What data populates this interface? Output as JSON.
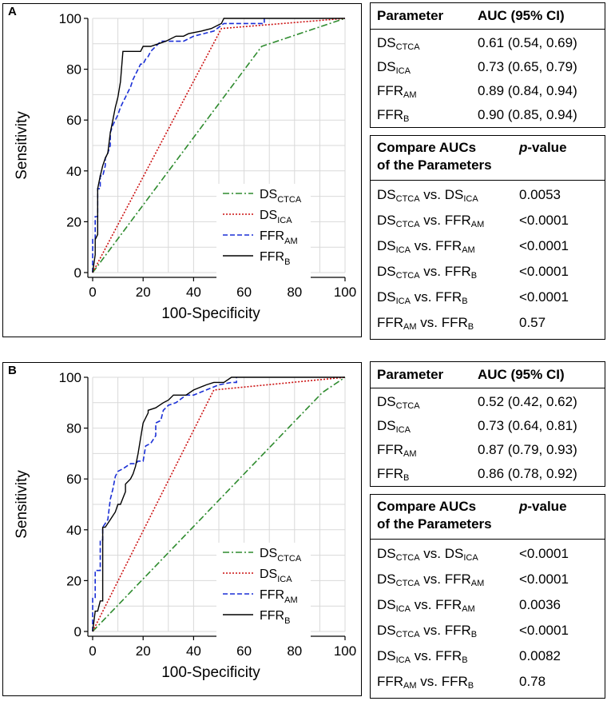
{
  "panels": [
    {
      "letter": "A",
      "chart_data": {
        "type": "line",
        "xlabel": "100-Specificity",
        "ylabel": "Sensitivity",
        "xlim": [
          0,
          100
        ],
        "ylim": [
          0,
          100
        ],
        "xticks": [
          "0",
          "20",
          "40",
          "60",
          "80",
          "100"
        ],
        "yticks": [
          "0",
          "20",
          "40",
          "60",
          "80",
          "100"
        ],
        "grid": true,
        "legend_position": "bottom-right",
        "series": [
          {
            "name": "DS_CTCA",
            "base": "DS",
            "sub": "CTCA",
            "color": "#2e8b2e",
            "dash": "8,3,2,3",
            "x": [
              0,
              67,
              100
            ],
            "y": [
              0,
              89,
              100
            ]
          },
          {
            "name": "DS_ICA",
            "base": "DS",
            "sub": "ICA",
            "color": "#cc1111",
            "dash": "2,2",
            "x": [
              0,
              51,
              100
            ],
            "y": [
              0,
              96,
              100
            ]
          },
          {
            "name": "FFR_AM",
            "base": "FFR",
            "sub": "AM",
            "color": "#1a2fd6",
            "dash": "6,3",
            "x": [
              0,
              0,
              1,
              1,
              2,
              2,
              3,
              3,
              4,
              5,
              5,
              6,
              7,
              7,
              8,
              9,
              10,
              11,
              12,
              13,
              14,
              15,
              16,
              17,
              18,
              19,
              20,
              21,
              22,
              23,
              25,
              27,
              30,
              33,
              36,
              40,
              44,
              48,
              52,
              56,
              60,
              64,
              68,
              68
            ],
            "y": [
              0,
              13,
              13,
              22,
              22,
              33,
              33,
              38,
              38,
              42,
              45,
              47,
              50,
              55,
              58,
              60,
              62,
              65,
              67,
              69,
              71,
              73,
              76,
              78,
              80,
              82,
              82,
              84,
              85,
              87,
              89,
              91,
              91,
              91,
              91,
              93,
              94,
              95,
              98,
              98,
              98,
              98,
              98,
              100
            ]
          },
          {
            "name": "FFR_B",
            "base": "FFR",
            "sub": "B",
            "color": "#000000",
            "dash": "",
            "x": [
              0,
              1,
              1,
              2,
              2,
              3,
              4,
              5,
              6,
              7,
              8,
              9,
              10,
              11,
              12,
              13,
              19,
              20,
              23,
              26,
              29,
              33,
              36,
              38,
              43,
              47,
              51,
              52,
              58,
              70,
              100
            ],
            "y": [
              0,
              7,
              13,
              15,
              33,
              38,
              42,
              45,
              47,
              55,
              60,
              65,
              69,
              75,
              87,
              87,
              87,
              89,
              89,
              90,
              91,
              93,
              93,
              94,
              95,
              96,
              98,
              100,
              100,
              100,
              100
            ]
          }
        ]
      },
      "auc_table": {
        "header": [
          "Parameter",
          "AUC (95% CI)"
        ],
        "rows": [
          {
            "base": "DS",
            "sub": "CTCA",
            "auc": "0.61 (0.54, 0.69)"
          },
          {
            "base": "DS",
            "sub": "ICA",
            "auc": "0.73 (0.65, 0.79)"
          },
          {
            "base": "FFR",
            "sub": "AM",
            "auc": "0.89 (0.84, 0.94)"
          },
          {
            "base": "FFR",
            "sub": "B",
            "auc": "0.90 (0.85, 0.94)"
          }
        ]
      },
      "compare_table": {
        "header_line1": "Compare AUCs",
        "header_line2": "of the Parameters",
        "header_p": "p",
        "header_value": "-value",
        "rows": [
          {
            "a": "DS",
            "as": "CTCA",
            "b": "DS",
            "bs": "ICA",
            "p": "0.0053"
          },
          {
            "a": "DS",
            "as": "CTCA",
            "b": "FFR",
            "bs": "AM",
            "p": "<0.0001"
          },
          {
            "a": "DS",
            "as": "ICA",
            "b": "FFR",
            "bs": "AM",
            "p": "<0.0001"
          },
          {
            "a": "DS",
            "as": "CTCA",
            "b": "FFR",
            "bs": "B",
            "p": "<0.0001"
          },
          {
            "a": "DS",
            "as": "ICA",
            "b": "FFR",
            "bs": "B",
            "p": "<0.0001"
          },
          {
            "a": "FFR",
            "as": "AM",
            "b": "FFR",
            "bs": "B",
            "p": "0.57"
          }
        ],
        "vs_word": "vs."
      }
    },
    {
      "letter": "B",
      "chart_data": {
        "type": "line",
        "xlabel": "100-Specificity",
        "ylabel": "Sensitivity",
        "xlim": [
          0,
          100
        ],
        "ylim": [
          0,
          100
        ],
        "xticks": [
          "0",
          "20",
          "40",
          "60",
          "80",
          "100"
        ],
        "yticks": [
          "0",
          "20",
          "40",
          "60",
          "80",
          "100"
        ],
        "grid": true,
        "legend_position": "bottom-right",
        "series": [
          {
            "name": "DS_CTCA",
            "base": "DS",
            "sub": "CTCA",
            "color": "#2e8b2e",
            "dash": "8,3,2,3",
            "x": [
              0,
              91,
              100
            ],
            "y": [
              0,
              94,
              100
            ]
          },
          {
            "name": "DS_ICA",
            "base": "DS",
            "sub": "ICA",
            "color": "#cc1111",
            "dash": "2,2",
            "x": [
              0,
              48,
              100
            ],
            "y": [
              0,
              95,
              100
            ]
          },
          {
            "name": "FFR_AM",
            "base": "FFR",
            "sub": "AM",
            "color": "#1a2fd6",
            "dash": "6,3",
            "x": [
              0,
              0,
              1,
              1,
              3,
              3,
              4,
              4,
              6,
              7,
              8,
              9,
              10,
              12,
              15,
              17,
              18,
              19,
              20,
              21,
              21,
              23,
              25,
              25,
              27,
              28,
              30,
              33,
              37,
              40,
              45,
              50,
              55,
              57,
              57
            ],
            "y": [
              0,
              13,
              13,
              24,
              24,
              36,
              36,
              41,
              44,
              52,
              56,
              61,
              63,
              64,
              66,
              66,
              67,
              67,
              67,
              73,
              73,
              74,
              77,
              82,
              83,
              87,
              89,
              90,
              93,
              93,
              95,
              97,
              98,
              98,
              100
            ]
          },
          {
            "name": "FFR_B",
            "base": "FFR",
            "sub": "B",
            "color": "#000000",
            "dash": "",
            "x": [
              0,
              1,
              2,
              3,
              4,
              4,
              5,
              5,
              7,
              9,
              10,
              11,
              13,
              13,
              15,
              16,
              17,
              18,
              19,
              20,
              22,
              22,
              25,
              28,
              30,
              32,
              33,
              37,
              40,
              45,
              48,
              52,
              55,
              60,
              70,
              100
            ],
            "y": [
              0,
              8,
              8,
              12,
              12,
              41,
              41,
              41,
              44,
              47,
              50,
              50,
              55,
              58,
              60,
              62,
              65,
              70,
              76,
              82,
              86,
              87,
              88,
              90,
              91,
              93,
              93,
              93,
              95,
              97,
              98,
              98,
              100,
              100,
              100,
              100
            ]
          }
        ]
      },
      "auc_table": {
        "header": [
          "Parameter",
          "AUC (95% CI)"
        ],
        "rows": [
          {
            "base": "DS",
            "sub": "CTCA",
            "auc": "0.52 (0.42, 0.62)"
          },
          {
            "base": "DS",
            "sub": "ICA",
            "auc": "0.73 (0.64, 0.81)"
          },
          {
            "base": "FFR",
            "sub": "AM",
            "auc": "0.87 (0.79, 0.93)"
          },
          {
            "base": "FFR",
            "sub": "B",
            "auc": "0.86 (0.78, 0.92)"
          }
        ]
      },
      "compare_table": {
        "header_line1": "Compare AUCs",
        "header_line2": "of the Parameters",
        "header_p": "p",
        "header_value": "-value",
        "rows": [
          {
            "a": "DS",
            "as": "CTCA",
            "b": "DS",
            "bs": "ICA",
            "p": "<0.0001"
          },
          {
            "a": "DS",
            "as": "CTCA",
            "b": "FFR",
            "bs": "AM",
            "p": "<0.0001"
          },
          {
            "a": "DS",
            "as": "ICA",
            "b": "FFR",
            "bs": "AM",
            "p": "0.0036"
          },
          {
            "a": "DS",
            "as": "CTCA",
            "b": "FFR",
            "bs": "B",
            "p": "<0.0001"
          },
          {
            "a": "DS",
            "as": "ICA",
            "b": "FFR",
            "bs": "B",
            "p": "0.0082"
          },
          {
            "a": "FFR",
            "as": "AM",
            "b": "FFR",
            "bs": "B",
            "p": "0.78"
          }
        ],
        "vs_word": "vs."
      }
    }
  ]
}
